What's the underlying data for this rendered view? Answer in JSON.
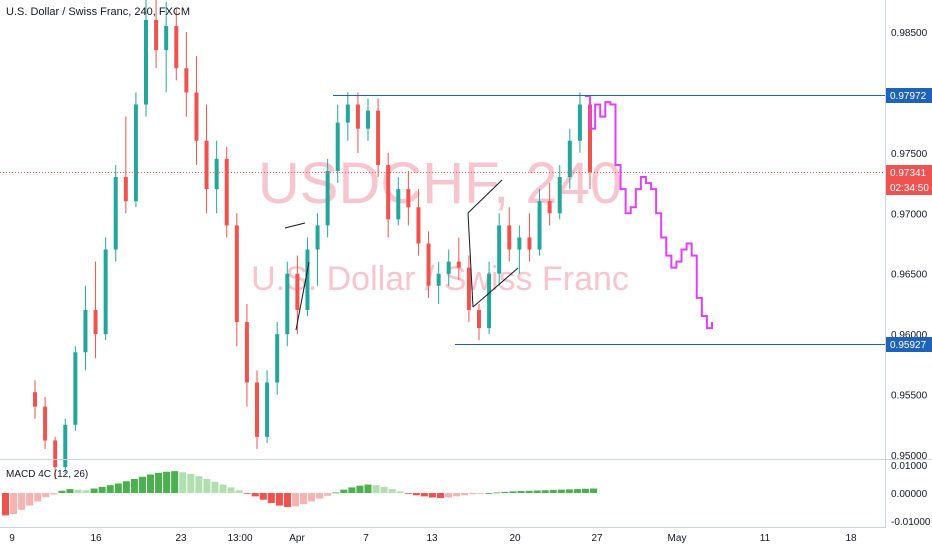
{
  "header": {
    "title": "U.S. Dollar / Swiss Franc, 240, FXCM"
  },
  "watermark": {
    "symbol": "USDCHF, 240",
    "name": "U.S. Dollar / Swiss Franc"
  },
  "colors": {
    "up": "#26a69a",
    "down": "#ef5350",
    "projection": "#e040fb",
    "level_line": "#1e63b8",
    "current_price": "#ef5350",
    "macd_pos_strong": "#4caf50",
    "macd_pos_weak": "#b2dfb0",
    "macd_neg_strong": "#ef5350",
    "macd_neg_weak": "#f5b4b2"
  },
  "price_axis": {
    "ticks": [
      "0.98500",
      "0.98000",
      "0.97500",
      "0.97000",
      "0.96500",
      "0.96000",
      "0.95500",
      "0.95000"
    ]
  },
  "time_axis": {
    "ticks": [
      "9",
      "16",
      "23",
      "13:00",
      "Apr",
      "7",
      "13",
      "20",
      "27",
      "May",
      "11",
      "18"
    ]
  },
  "price_tags": {
    "resistance": "0.97972",
    "support": "0.95927",
    "current": "0.97341",
    "countdown": "02:34:50"
  },
  "macd_panel": {
    "label": "MACD 4C (12, 26)",
    "ticks": [
      "0.01000",
      "0.00000",
      "-0.01000"
    ]
  },
  "chart_data": {
    "type": "candlestick",
    "title": "U.S. Dollar / Swiss Franc, 240, FXCM",
    "price_range": [
      0.95,
      0.988
    ],
    "horizontal_levels": [
      0.97972,
      0.95927
    ],
    "current_price": 0.97341,
    "candles": [
      [
        0.9552,
        0.9562,
        0.953,
        0.954
      ],
      [
        0.954,
        0.9548,
        0.9505,
        0.9512
      ],
      [
        0.9512,
        0.9515,
        0.948,
        0.949
      ],
      [
        0.949,
        0.953,
        0.9485,
        0.9525
      ],
      [
        0.9525,
        0.959,
        0.952,
        0.9585
      ],
      [
        0.9585,
        0.964,
        0.957,
        0.962
      ],
      [
        0.962,
        0.966,
        0.958,
        0.96
      ],
      [
        0.96,
        0.968,
        0.9595,
        0.967
      ],
      [
        0.967,
        0.974,
        0.966,
        0.973
      ],
      [
        0.973,
        0.978,
        0.97,
        0.971
      ],
      [
        0.971,
        0.98,
        0.9705,
        0.979
      ],
      [
        0.979,
        0.988,
        0.978,
        0.986
      ],
      [
        0.986,
        0.988,
        0.982,
        0.9835
      ],
      [
        0.9835,
        0.9875,
        0.98,
        0.9855
      ],
      [
        0.9855,
        0.987,
        0.981,
        0.982
      ],
      [
        0.982,
        0.985,
        0.978,
        0.98
      ],
      [
        0.98,
        0.983,
        0.974,
        0.976
      ],
      [
        0.976,
        0.979,
        0.97,
        0.972
      ],
      [
        0.972,
        0.976,
        0.97,
        0.9745
      ],
      [
        0.9745,
        0.9755,
        0.968,
        0.969
      ],
      [
        0.969,
        0.97,
        0.959,
        0.961
      ],
      [
        0.961,
        0.9625,
        0.954,
        0.956
      ],
      [
        0.956,
        0.957,
        0.9505,
        0.9515
      ],
      [
        0.9515,
        0.957,
        0.951,
        0.956
      ],
      [
        0.956,
        0.961,
        0.955,
        0.96
      ],
      [
        0.96,
        0.966,
        0.959,
        0.965
      ],
      [
        0.965,
        0.9665,
        0.96,
        0.962
      ],
      [
        0.962,
        0.968,
        0.9615,
        0.967
      ],
      [
        0.967,
        0.97,
        0.964,
        0.969
      ],
      [
        0.969,
        0.9745,
        0.968,
        0.9735
      ],
      [
        0.9735,
        0.979,
        0.9725,
        0.9775
      ],
      [
        0.9775,
        0.98,
        0.976,
        0.979
      ],
      [
        0.979,
        0.98,
        0.975,
        0.977
      ],
      [
        0.977,
        0.9795,
        0.976,
        0.9785
      ],
      [
        0.9785,
        0.9795,
        0.973,
        0.974
      ],
      [
        0.974,
        0.975,
        0.968,
        0.9695
      ],
      [
        0.9695,
        0.973,
        0.969,
        0.972
      ],
      [
        0.972,
        0.9735,
        0.969,
        0.9705
      ],
      [
        0.9705,
        0.972,
        0.9665,
        0.9675
      ],
      [
        0.9675,
        0.9685,
        0.963,
        0.964
      ],
      [
        0.964,
        0.966,
        0.9625,
        0.965
      ],
      [
        0.965,
        0.967,
        0.964,
        0.966
      ],
      [
        0.966,
        0.968,
        0.9645,
        0.9655
      ],
      [
        0.9655,
        0.9665,
        0.961,
        0.962
      ],
      [
        0.962,
        0.9625,
        0.9595,
        0.9605
      ],
      [
        0.9605,
        0.966,
        0.96,
        0.965
      ],
      [
        0.965,
        0.97,
        0.964,
        0.969
      ],
      [
        0.969,
        0.9705,
        0.966,
        0.967
      ],
      [
        0.967,
        0.969,
        0.965,
        0.968
      ],
      [
        0.968,
        0.97,
        0.966,
        0.967
      ],
      [
        0.967,
        0.972,
        0.9665,
        0.971
      ],
      [
        0.971,
        0.9725,
        0.969,
        0.97
      ],
      [
        0.97,
        0.974,
        0.9695,
        0.973
      ],
      [
        0.973,
        0.977,
        0.972,
        0.976
      ],
      [
        0.976,
        0.98,
        0.975,
        0.979
      ],
      [
        0.979,
        0.9797,
        0.972,
        0.9734
      ]
    ],
    "projection_path": [
      0.9797,
      0.977,
      0.979,
      0.978,
      0.9792,
      0.979,
      0.974,
      0.972,
      0.97,
      0.9705,
      0.972,
      0.973,
      0.9725,
      0.972,
      0.97,
      0.968,
      0.9665,
      0.9655,
      0.966,
      0.967,
      0.9675,
      0.9665,
      0.963,
      0.9615,
      0.9605,
      0.961
    ],
    "macd_histogram": [
      -0.008,
      -0.0075,
      -0.006,
      -0.0045,
      -0.003,
      -0.0015,
      -0.0005,
      0.0008,
      0.0014,
      0.0012,
      0.001,
      0.0016,
      0.0022,
      0.0028,
      0.0034,
      0.0042,
      0.005,
      0.0058,
      0.0066,
      0.0072,
      0.0076,
      0.0078,
      0.0074,
      0.0068,
      0.006,
      0.005,
      0.004,
      0.003,
      0.002,
      0.001,
      -0.0002,
      -0.0012,
      -0.0024,
      -0.0036,
      -0.0045,
      -0.005,
      -0.0048,
      -0.004,
      -0.003,
      -0.002,
      -0.001,
      0.0002,
      0.0012,
      0.002,
      0.0026,
      0.003,
      0.0028,
      0.0022,
      0.0014,
      0.0006,
      -0.0002,
      -0.0008,
      -0.0012,
      -0.0016,
      -0.0018,
      -0.0016,
      -0.0012,
      -0.0008,
      -0.0004,
      -0.0002,
      0.0,
      0.0002,
      0.0004,
      0.0006,
      0.0007,
      0.0008,
      0.0009,
      0.001,
      0.0011,
      0.0012,
      0.0013,
      0.0014,
      0.0015,
      0.0016
    ]
  }
}
